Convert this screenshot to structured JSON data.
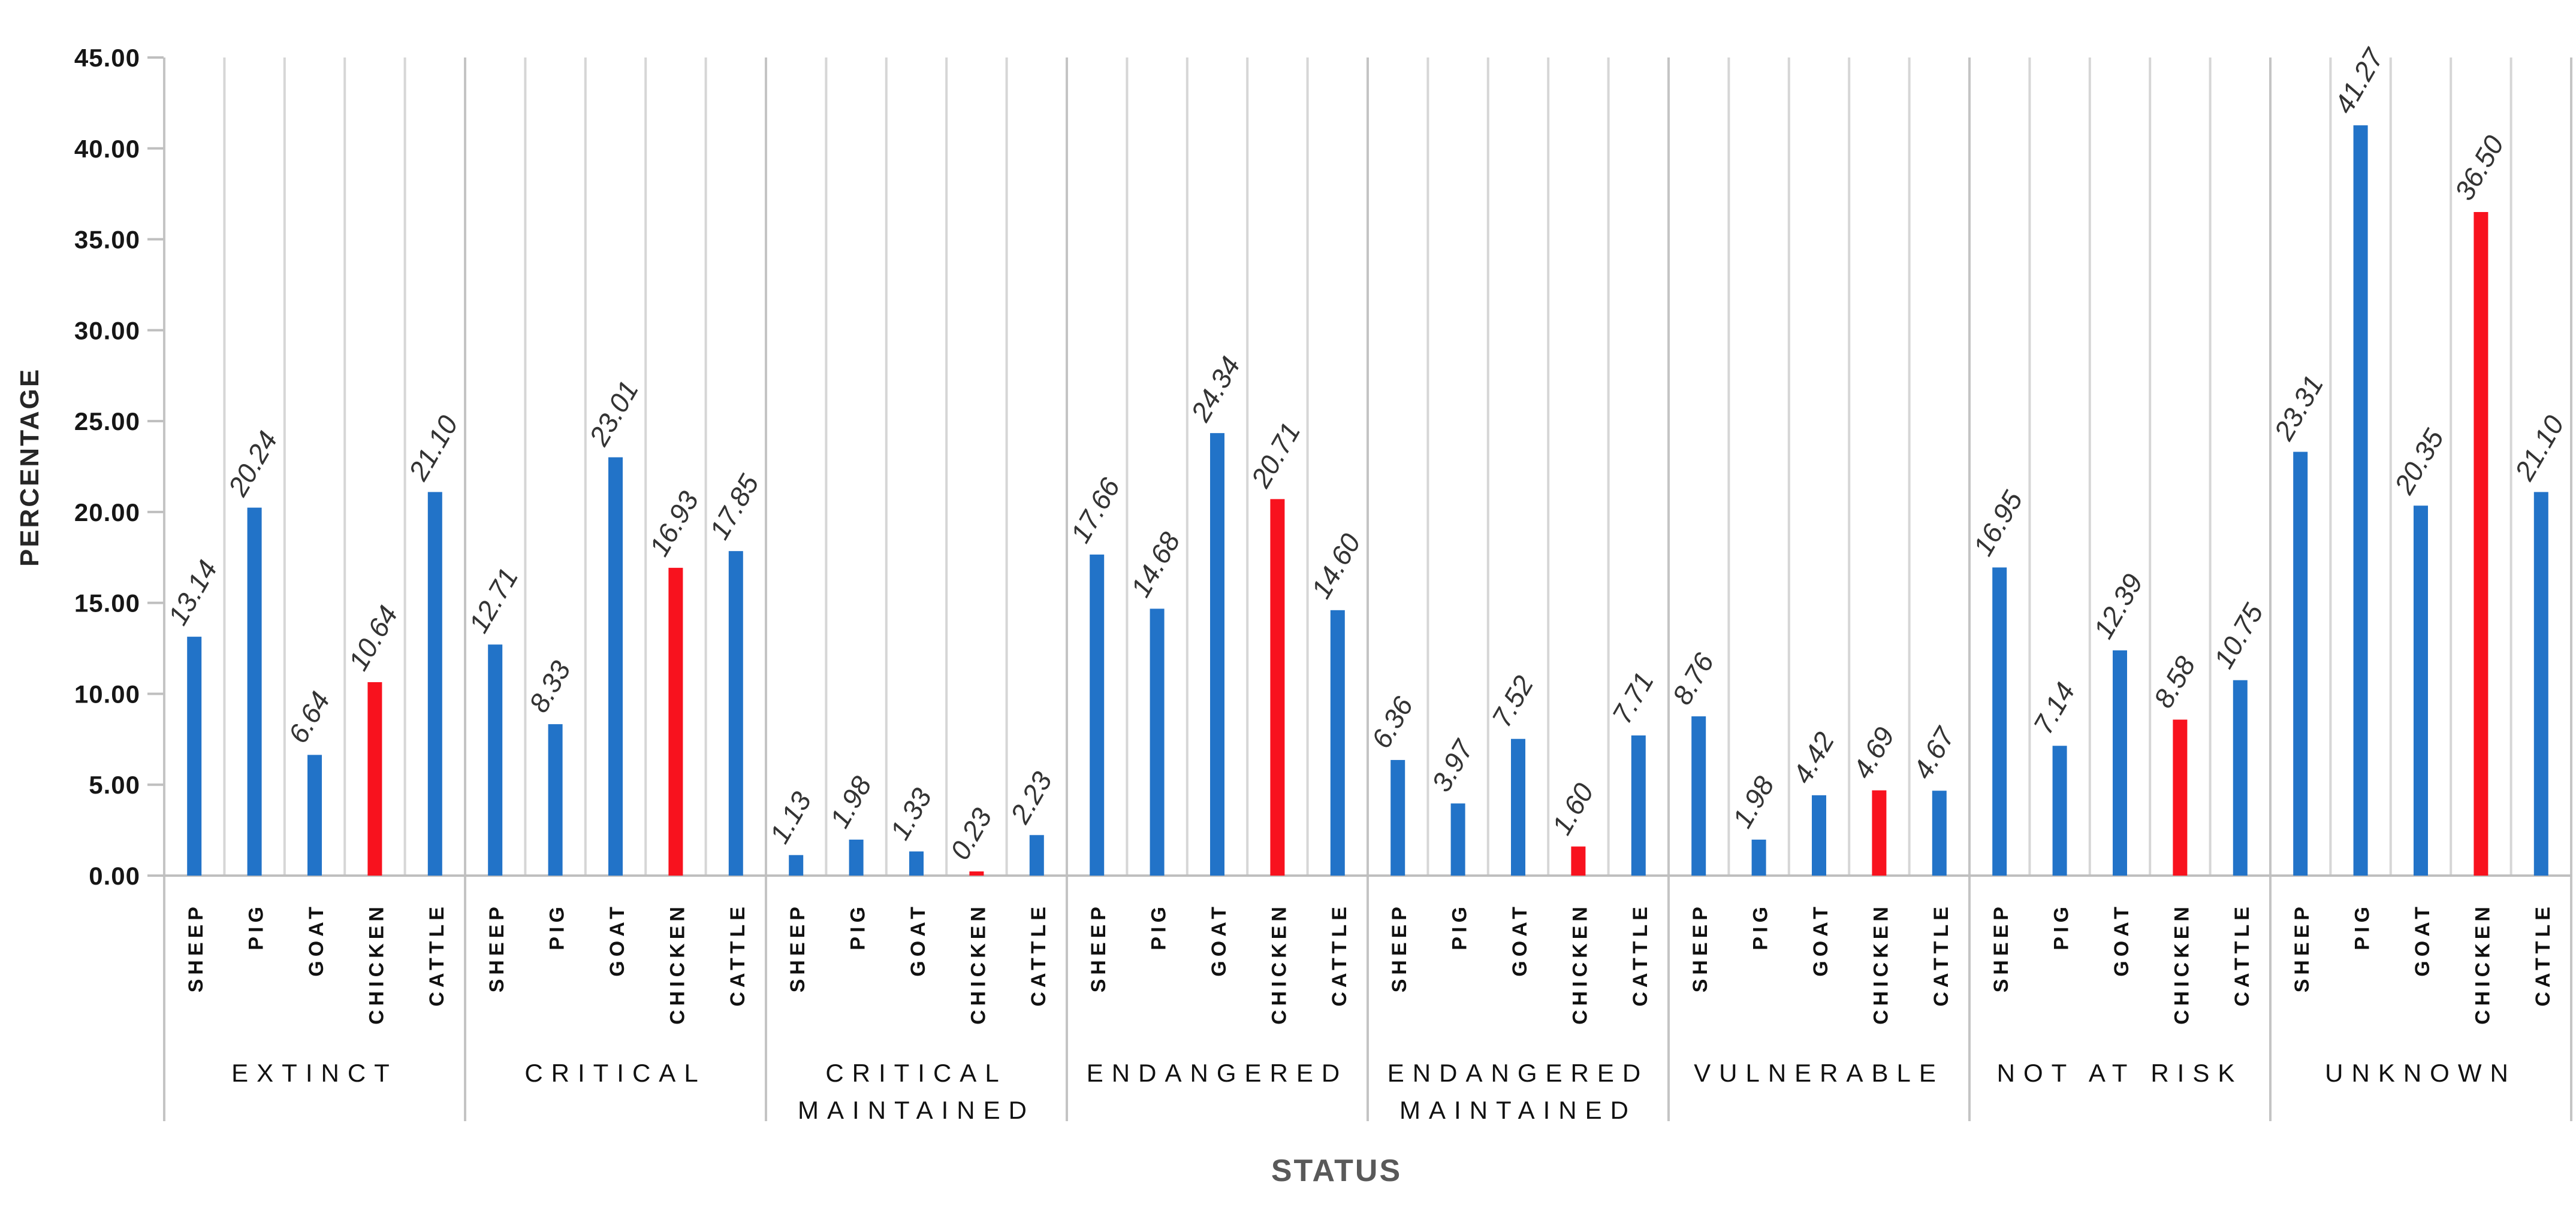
{
  "chart_data": {
    "type": "bar",
    "title": "",
    "xlabel": "STATUS",
    "ylabel": "PERCENTAGE",
    "ylim": [
      0,
      45
    ],
    "ytick_step": 5,
    "yticks": [
      "0.00",
      "5.00",
      "10.00",
      "15.00",
      "20.00",
      "25.00",
      "30.00",
      "35.00",
      "40.00",
      "45.00"
    ],
    "grid": "vertical category separator lines only, no horizontal gridlines",
    "legend_position": "none",
    "value_labels": "above each bar, italic, rotated 60 degrees, two decimals",
    "series_labels": [
      "SHEEP",
      "PIG",
      "GOAT",
      "CHICKEN",
      "CATTLE"
    ],
    "bar_color_rule": "CHICKEN bars red, all other bars blue",
    "categories": [
      "EXTINCT",
      "CRITICAL",
      "CRITICAL MAINTAINED",
      "ENDANGERED",
      "ENDANGERED MAINTAINED",
      "VULNERABLE",
      "NOT AT RISK",
      "UNKNOWN"
    ],
    "groups": [
      {
        "category": "EXTINCT",
        "label_lines": [
          "EXTINCT"
        ],
        "values": [
          13.14,
          20.24,
          6.64,
          10.64,
          21.1
        ]
      },
      {
        "category": "CRITICAL",
        "label_lines": [
          "CRITICAL"
        ],
        "values": [
          12.71,
          8.33,
          23.01,
          16.93,
          17.85
        ]
      },
      {
        "category": "CRITICAL MAINTAINED",
        "label_lines": [
          "CRITICAL",
          "MAINTAINED"
        ],
        "values": [
          1.13,
          1.98,
          1.33,
          0.23,
          2.23
        ]
      },
      {
        "category": "ENDANGERED",
        "label_lines": [
          "ENDANGERED"
        ],
        "values": [
          17.66,
          14.68,
          24.34,
          20.71,
          14.6
        ]
      },
      {
        "category": "ENDANGERED MAINTAINED",
        "label_lines": [
          "ENDANGERED",
          "MAINTAINED"
        ],
        "values": [
          6.36,
          3.97,
          7.52,
          1.6,
          7.71
        ]
      },
      {
        "category": "VULNERABLE",
        "label_lines": [
          "VULNERABLE"
        ],
        "values": [
          8.76,
          1.98,
          4.42,
          4.69,
          4.67
        ]
      },
      {
        "category": "NOT AT RISK",
        "label_lines": [
          "NOT AT RISK"
        ],
        "values": [
          16.95,
          7.14,
          12.39,
          8.58,
          10.75
        ]
      },
      {
        "category": "UNKNOWN",
        "label_lines": [
          "UNKNOWN"
        ],
        "values": [
          23.31,
          41.27,
          20.35,
          36.5,
          21.1
        ]
      }
    ],
    "colors": {
      "bar_blue": "#2273c8",
      "bar_red": "#f8121e",
      "gridline": "#d6d6d6",
      "group_separator": "#c4c4c4",
      "axis_line": "#bfbfbf",
      "value_label_text": "#333333",
      "category_text": "#111111",
      "y_axis_title_text": "#262626",
      "x_axis_title_text": "#595959"
    }
  }
}
